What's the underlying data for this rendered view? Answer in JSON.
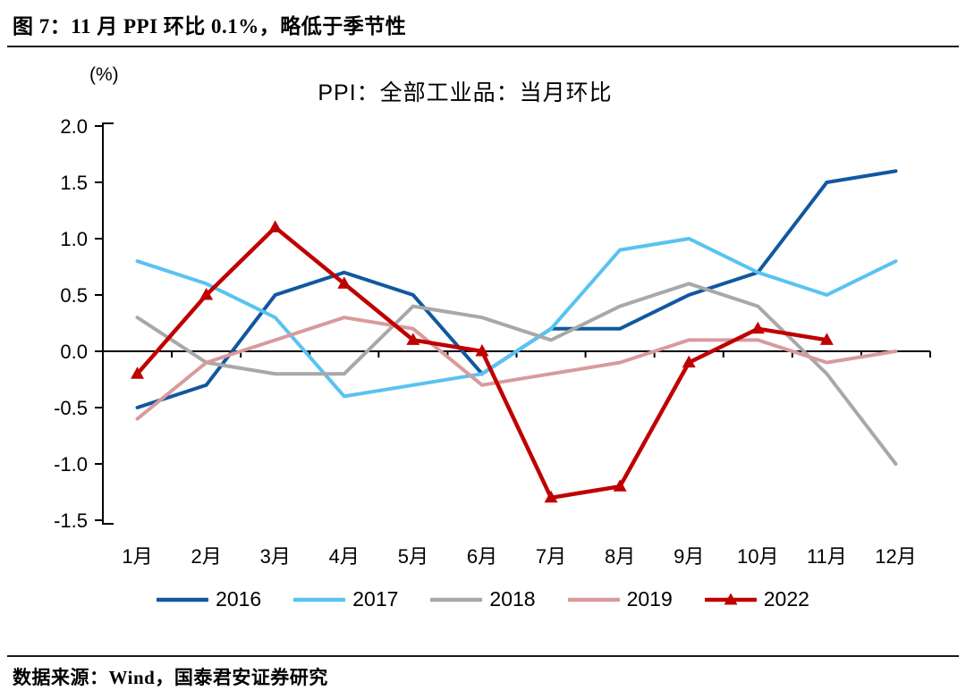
{
  "figure": {
    "title": "图 7：11 月 PPI 环比 0.1%，略低于季节性",
    "source": "数据来源：Wind，国泰君安证券研究"
  },
  "chart_data": {
    "type": "line",
    "title": "PPI：全部工业品：当月环比",
    "unit_label": "(%)",
    "categories": [
      "1月",
      "2月",
      "3月",
      "4月",
      "5月",
      "6月",
      "7月",
      "8月",
      "9月",
      "10月",
      "11月",
      "12月"
    ],
    "ylim": [
      -1.5,
      2.0
    ],
    "ytick_step": 0.5,
    "ytick_labels": [
      "2.0",
      "1.5",
      "1.0",
      "0.5",
      "0.0",
      "-0.5",
      "-1.0",
      "-1.5"
    ],
    "grid": false,
    "legend_position": "bottom",
    "axis_color": "#000000",
    "series": [
      {
        "name": "2016",
        "color": "#11589F",
        "marker": "none",
        "values": [
          -0.5,
          -0.3,
          0.5,
          0.7,
          0.5,
          -0.2,
          0.2,
          0.2,
          0.5,
          0.7,
          1.5,
          1.6
        ]
      },
      {
        "name": "2017",
        "color": "#58C3F0",
        "marker": "none",
        "values": [
          0.8,
          0.6,
          0.3,
          -0.4,
          -0.3,
          -0.2,
          0.2,
          0.9,
          1.0,
          0.7,
          0.5,
          0.8
        ]
      },
      {
        "name": "2018",
        "color": "#A8A8A8",
        "marker": "none",
        "values": [
          0.3,
          -0.1,
          -0.2,
          -0.2,
          0.4,
          0.3,
          0.1,
          0.4,
          0.6,
          0.4,
          -0.2,
          -1.0
        ]
      },
      {
        "name": "2019",
        "color": "#D99A9C",
        "marker": "none",
        "values": [
          -0.6,
          -0.1,
          0.1,
          0.3,
          0.2,
          -0.3,
          -0.2,
          -0.1,
          0.1,
          0.1,
          -0.1,
          0.0
        ]
      },
      {
        "name": "2022",
        "color": "#C00000",
        "marker": "triangle",
        "values": [
          -0.2,
          0.5,
          1.1,
          0.6,
          0.1,
          0.0,
          -1.3,
          -1.2,
          -0.1,
          0.2,
          0.1
        ]
      }
    ]
  }
}
